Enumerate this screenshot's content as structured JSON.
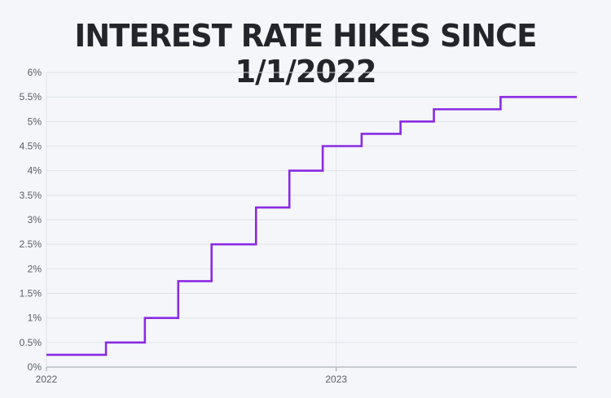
{
  "chart_data": {
    "type": "line",
    "step": true,
    "title": "INTEREST RATE HIKES SINCE 1/1/2022",
    "xlabel": "",
    "ylabel": "",
    "x_ticks": [
      {
        "label": "2022",
        "date": "2022-01-01"
      },
      {
        "label": "2023",
        "date": "2023-01-01"
      }
    ],
    "x_range": [
      "2022-01-01",
      "2023-10-31"
    ],
    "y_ticks": [
      "0%",
      "0.5%",
      "1%",
      "1.5%",
      "2%",
      "2.5%",
      "3%",
      "3.5%",
      "4%",
      "4.5%",
      "5%",
      "5.5%",
      "6%"
    ],
    "y_tick_values": [
      0,
      0.5,
      1,
      1.5,
      2,
      2.5,
      3,
      3.5,
      4,
      4.5,
      5,
      5.5,
      6
    ],
    "ylim": [
      0,
      6
    ],
    "grid": true,
    "line_color": "#8a2be2",
    "series": [
      {
        "x": [
          "2022-01-01",
          "2022-03-17",
          "2022-05-05",
          "2022-06-16",
          "2022-07-28",
          "2022-09-22",
          "2022-11-03",
          "2022-12-15",
          "2023-02-02",
          "2023-03-23",
          "2023-05-04",
          "2023-07-27",
          "2023-10-31"
        ],
        "y": [
          0.25,
          0.5,
          1.0,
          1.75,
          2.5,
          3.25,
          4.0,
          4.5,
          4.75,
          5.0,
          5.25,
          5.5,
          5.5
        ]
      }
    ]
  }
}
